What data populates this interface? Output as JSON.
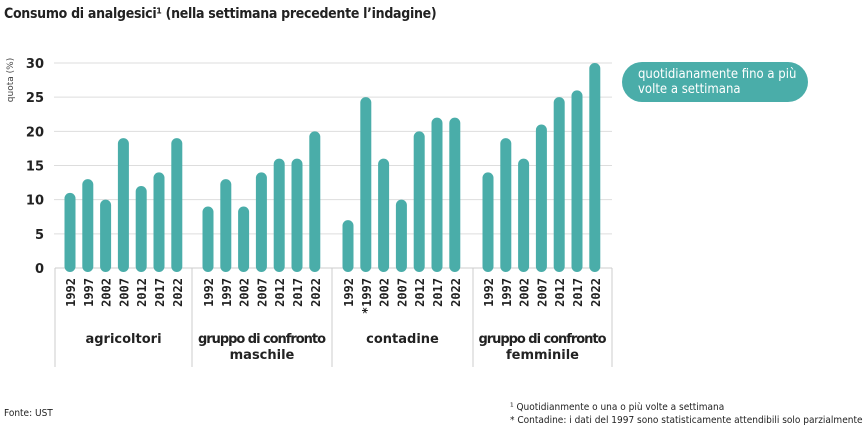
{
  "title": "Consumo di analgesici¹ (nella settimana precedente l’indagine)",
  "legend": {
    "label": "quotidianamente fino a più volte a settimana",
    "color": "#4aada9"
  },
  "source": "Fonte: UST",
  "footnotes": [
    "¹ Quotidianmente o una o più volte a settimana",
    "* Contadine: i dati del 1997 sono statisticamente attendibili solo parzialmente"
  ],
  "chart_data": {
    "type": "bar",
    "title": "Consumo di analgesici¹ (nella settimana precedente l’indagine)",
    "ylabel": "quota (%)",
    "ylim": [
      0,
      30
    ],
    "yticks": [
      0,
      5,
      10,
      15,
      20,
      25,
      30
    ],
    "grid": true,
    "legend_position": "top-right",
    "groups": [
      {
        "label": "agricoltori",
        "years": [
          "1992",
          "1997",
          "2002",
          "2007",
          "2012",
          "2017",
          "2022"
        ],
        "values": [
          11,
          13,
          10,
          19,
          12,
          14,
          19
        ]
      },
      {
        "label": "gruppo di confronto maschile",
        "years": [
          "1992",
          "1997",
          "2002",
          "2007",
          "2012",
          "2017",
          "2022"
        ],
        "values": [
          9,
          13,
          9,
          14,
          16,
          16,
          20
        ]
      },
      {
        "label": "contadine",
        "years": [
          "1992",
          "*1997",
          "2002",
          "2007",
          "2012",
          "2017",
          "2022"
        ],
        "values": [
          7,
          25,
          16,
          10,
          20,
          22,
          22
        ]
      },
      {
        "label": "gruppo di confronto femminile",
        "years": [
          "1992",
          "1997",
          "2002",
          "2007",
          "2012",
          "2017",
          "2022"
        ],
        "values": [
          14,
          19,
          16,
          21,
          25,
          26,
          30
        ]
      }
    ],
    "series": [
      {
        "name": "quotidianamente fino a più volte a settimana"
      }
    ]
  }
}
